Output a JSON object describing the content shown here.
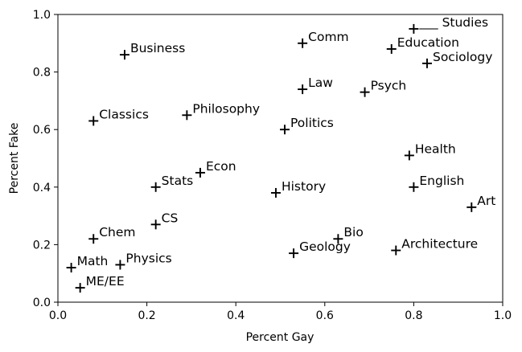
{
  "chart_data": {
    "type": "scatter",
    "title": "",
    "xlabel": "Percent Gay",
    "ylabel": "Percent Fake",
    "xlim": [
      0.0,
      1.0
    ],
    "ylim": [
      0.0,
      1.0
    ],
    "x_ticks": [
      "0.0",
      "0.2",
      "0.4",
      "0.6",
      "0.8",
      "1.0"
    ],
    "y_ticks": [
      "0.0",
      "0.2",
      "0.4",
      "0.6",
      "0.8",
      "1.0"
    ],
    "grid": false,
    "legend": "none",
    "marker": "plus",
    "marker_color": "#000000",
    "points": [
      {
        "label": "___ Studies",
        "x": 0.8,
        "y": 0.95
      },
      {
        "label": "Education",
        "x": 0.75,
        "y": 0.88
      },
      {
        "label": "Sociology",
        "x": 0.83,
        "y": 0.83
      },
      {
        "label": "Comm",
        "x": 0.55,
        "y": 0.9
      },
      {
        "label": "Law",
        "x": 0.55,
        "y": 0.74
      },
      {
        "label": "Psych",
        "x": 0.69,
        "y": 0.73
      },
      {
        "label": "Business",
        "x": 0.15,
        "y": 0.86
      },
      {
        "label": "Classics",
        "x": 0.08,
        "y": 0.63
      },
      {
        "label": "Philosophy",
        "x": 0.29,
        "y": 0.65
      },
      {
        "label": "Politics",
        "x": 0.51,
        "y": 0.6
      },
      {
        "label": "Health",
        "x": 0.79,
        "y": 0.51
      },
      {
        "label": "English",
        "x": 0.8,
        "y": 0.4
      },
      {
        "label": "Art",
        "x": 0.93,
        "y": 0.33
      },
      {
        "label": "Econ",
        "x": 0.32,
        "y": 0.45
      },
      {
        "label": "Stats",
        "x": 0.22,
        "y": 0.4
      },
      {
        "label": "History",
        "x": 0.49,
        "y": 0.38
      },
      {
        "label": "CS",
        "x": 0.22,
        "y": 0.27
      },
      {
        "label": "Chem",
        "x": 0.08,
        "y": 0.22
      },
      {
        "label": "Bio",
        "x": 0.63,
        "y": 0.22
      },
      {
        "label": "Geology",
        "x": 0.53,
        "y": 0.17
      },
      {
        "label": "Architecture",
        "x": 0.76,
        "y": 0.18
      },
      {
        "label": "Math",
        "x": 0.03,
        "y": 0.12
      },
      {
        "label": "Physics",
        "x": 0.14,
        "y": 0.13
      },
      {
        "label": "ME/EE",
        "x": 0.05,
        "y": 0.05
      }
    ]
  }
}
